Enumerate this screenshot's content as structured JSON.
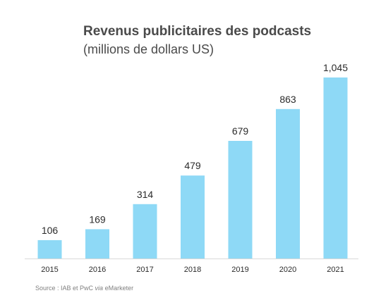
{
  "chart_data": {
    "type": "bar",
    "title": "Revenus publicitaires des podcasts",
    "subtitle": "(millions de dollars US)",
    "categories": [
      "2015",
      "2016",
      "2017",
      "2018",
      "2019",
      "2020",
      "2021"
    ],
    "values": [
      106,
      169,
      314,
      479,
      679,
      863,
      1045
    ],
    "value_labels": [
      "106",
      "169",
      "314",
      "479",
      "679",
      "863",
      "1,045"
    ],
    "xlabel": "",
    "ylabel": "",
    "ylim": [
      0,
      1045
    ],
    "grid": false,
    "bar_color": "#8ed9f6",
    "axis_color": "#d9d9d9"
  },
  "source": {
    "prefix": "Source : IAB et PwC ",
    "via": "via",
    "suffix": " eMarketer"
  }
}
